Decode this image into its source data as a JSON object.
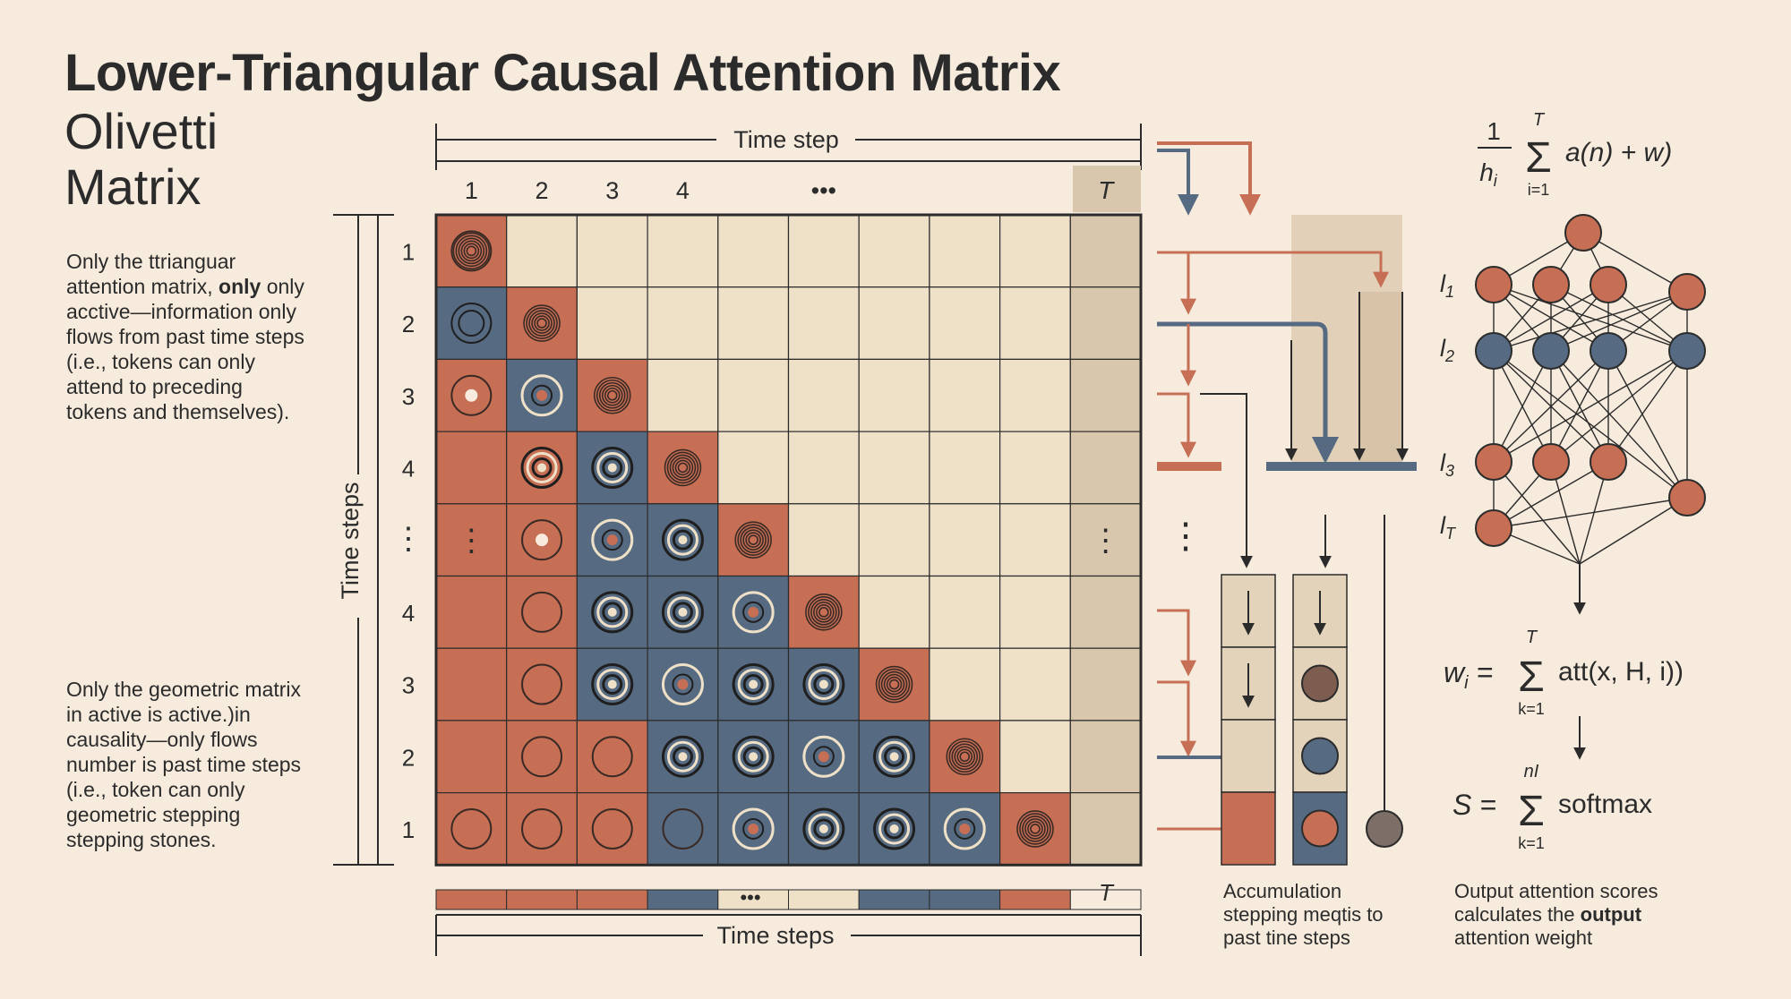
{
  "title": "Lower-Triangular Causal Attention Matrix",
  "subtitle": "Olivetti Matrix",
  "colors": {
    "background": "#f6ebdc",
    "rust": "#c76f55",
    "slate": "#566b82",
    "cream": "#efe0c8",
    "tan": "#d9c7ad",
    "ink": "#2b2b2b"
  },
  "left_text": {
    "paragraph_1_a": "Only the ttrianguar attention matrix,",
    "paragraph_1_bold": "only",
    "paragraph_1_b": "only acctive—information only flows from past time steps (i.e., tokens can only attend to preceding tokens and themselves).",
    "paragraph_2": "Only the geometric matrix in active is active.)in causality—only flows number is past time steps (i.e., token can only geometric stepping stepping stones."
  },
  "matrix": {
    "top_axis_label": "Time step",
    "column_labels": [
      "1",
      "2",
      "3",
      "4",
      "",
      "•••",
      "",
      "",
      "",
      "T"
    ],
    "row_axis_label": "Time steps",
    "row_labels": [
      "1",
      "2",
      "3",
      "4",
      "⋮",
      "4",
      "3",
      "2",
      "1"
    ],
    "bottom_axis_label": "Time steps",
    "bottom_dots": "•••",
    "bottom_T": "T",
    "vertical_dots": "⋮"
  },
  "accumulation": {
    "caption": "Accumulation stepping meqtis to past tine steps"
  },
  "network": {
    "top_formula": {
      "frac_num": "1",
      "frac_den": "h",
      "frac_den_sub": "i",
      "sum_top": "T",
      "sum_bottom": "i=1",
      "body": "a(n) + w)"
    },
    "layer_labels": [
      "l",
      "l",
      "l",
      "l"
    ],
    "layer_subs": [
      "1",
      "2",
      "3",
      "T"
    ],
    "formula_w": {
      "lhs": "w",
      "lhs_sub": "i",
      "sum_top": "T",
      "sum_bottom": "k=1",
      "body": "att(x, H, i))"
    },
    "formula_s": {
      "lhs": "S =",
      "sum_top": "nI",
      "sum_bottom": "k=1",
      "body": "softmax"
    },
    "caption_a": "Output attention scores calculates the",
    "caption_bold": "output",
    "caption_b": "attention weight"
  }
}
